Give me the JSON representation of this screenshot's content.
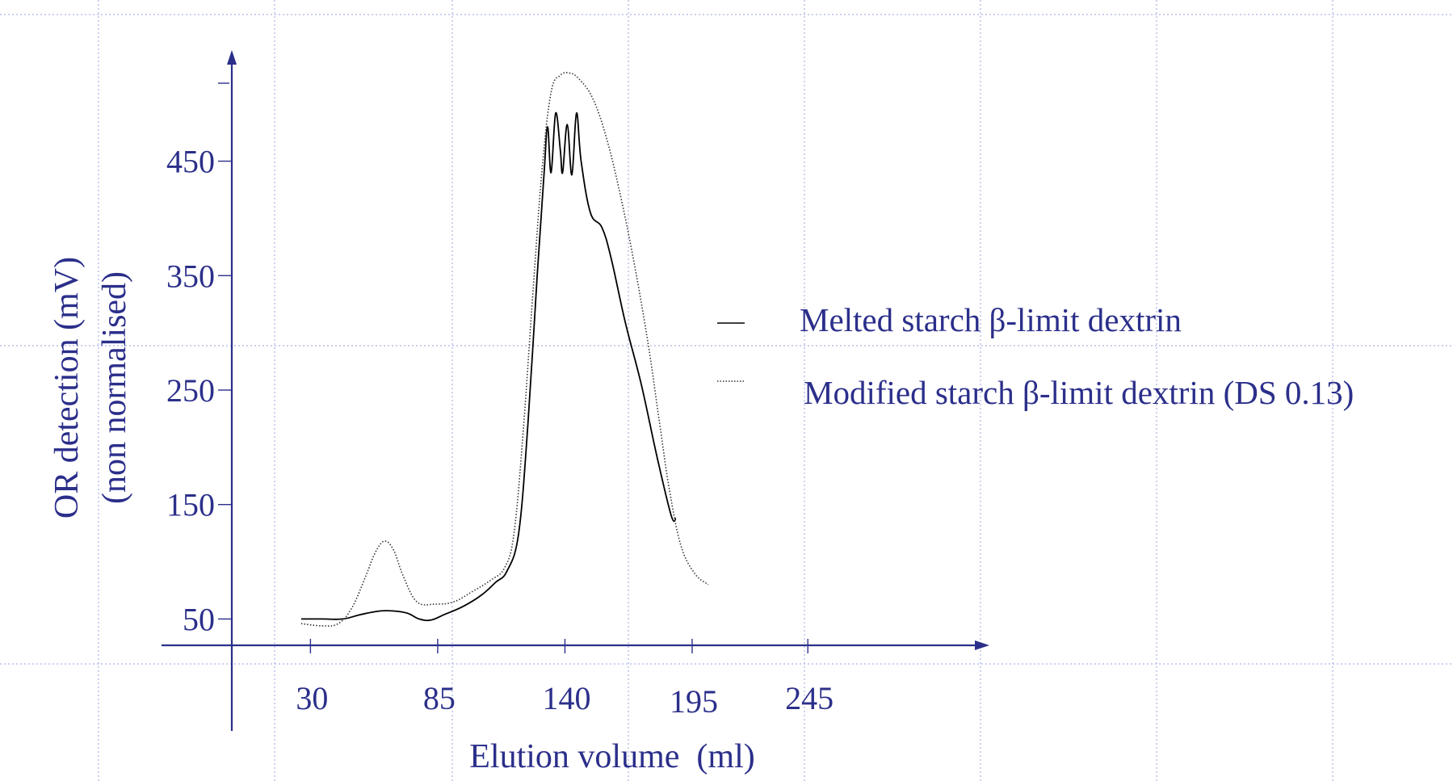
{
  "chart_data": {
    "type": "line",
    "xlabel": "Elution volume  (ml)",
    "ylabel_line1": "OR detection (mV)",
    "ylabel_line2": "(non normalised)",
    "x_ticks": [
      30,
      85,
      140,
      195,
      245
    ],
    "y_ticks": [
      50,
      150,
      250,
      350,
      450
    ],
    "x_tick_labels": [
      "30",
      "85",
      "140",
      "195",
      "245"
    ],
    "y_tick_labels": [
      "50",
      "150",
      "250",
      "350",
      "450"
    ],
    "xlim": [
      -4,
      320
    ],
    "ylim": [
      27,
      540
    ],
    "legend_placement": "right",
    "series": [
      {
        "name": "Melted starch β-limit dextrin",
        "line_style": "solid",
        "color": "#000000",
        "points": [
          [
            26,
            50
          ],
          [
            35,
            50
          ],
          [
            44,
            50
          ],
          [
            52,
            54
          ],
          [
            60,
            57
          ],
          [
            66,
            57
          ],
          [
            72,
            55
          ],
          [
            77,
            50
          ],
          [
            82,
            49
          ],
          [
            88,
            54
          ],
          [
            96,
            61
          ],
          [
            104,
            71
          ],
          [
            110,
            82
          ],
          [
            115,
            92
          ],
          [
            120,
            125
          ],
          [
            124,
            220
          ],
          [
            128,
            350
          ],
          [
            131,
            440
          ],
          [
            132.5,
            480
          ],
          [
            134,
            440
          ],
          [
            136,
            492
          ],
          [
            138,
            460
          ],
          [
            139,
            440
          ],
          [
            141,
            482
          ],
          [
            143,
            438
          ],
          [
            145,
            492
          ],
          [
            147,
            450
          ],
          [
            151,
            405
          ],
          [
            156,
            392
          ],
          [
            160,
            365
          ],
          [
            166,
            310
          ],
          [
            173,
            255
          ],
          [
            180,
            190
          ],
          [
            186,
            140
          ],
          [
            188,
            138
          ]
        ]
      },
      {
        "name": "Modified starch β-limit dextrin (DS 0.13)",
        "line_style": "dotted",
        "color": "#333333",
        "points": [
          [
            26,
            46
          ],
          [
            35,
            44
          ],
          [
            42,
            46
          ],
          [
            48,
            60
          ],
          [
            54,
            88
          ],
          [
            58,
            108
          ],
          [
            62,
            118
          ],
          [
            66,
            110
          ],
          [
            70,
            88
          ],
          [
            76,
            65
          ],
          [
            84,
            63
          ],
          [
            92,
            65
          ],
          [
            100,
            74
          ],
          [
            108,
            84
          ],
          [
            114,
            95
          ],
          [
            118,
            125
          ],
          [
            122,
            215
          ],
          [
            126,
            330
          ],
          [
            130,
            440
          ],
          [
            134,
            510
          ],
          [
            138,
            525
          ],
          [
            142,
            527
          ],
          [
            146,
            522
          ],
          [
            152,
            505
          ],
          [
            158,
            470
          ],
          [
            164,
            420
          ],
          [
            170,
            360
          ],
          [
            176,
            290
          ],
          [
            181,
            220
          ],
          [
            185,
            165
          ],
          [
            190,
            115
          ],
          [
            196,
            90
          ],
          [
            202,
            80
          ]
        ]
      }
    ]
  },
  "footer": {
    "caption": ""
  }
}
